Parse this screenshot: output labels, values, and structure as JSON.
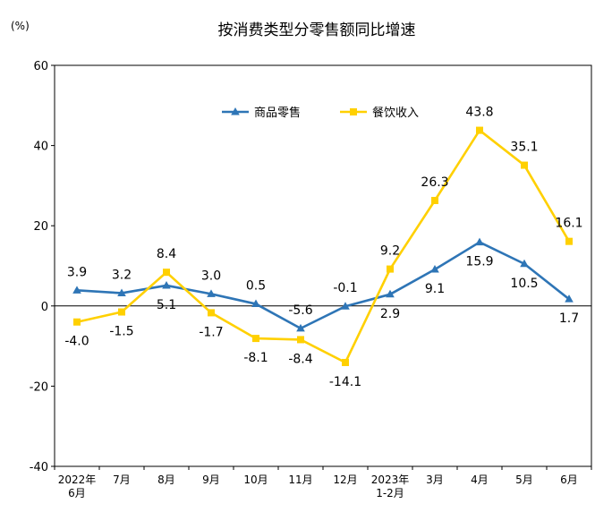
{
  "chart_data": {
    "type": "line",
    "title": "按消费类型分零售额同比增速",
    "unit": "(%)",
    "xlabel": "",
    "ylabel": "%",
    "ylim": [
      -40,
      60
    ],
    "yticks": [
      "60",
      "40",
      "20",
      "0",
      "-20",
      "-40"
    ],
    "grid": false,
    "legend_position": "top-center",
    "categories": [
      [
        "2022年",
        "6月"
      ],
      [
        "7月"
      ],
      [
        "8月"
      ],
      [
        "9月"
      ],
      [
        "10月"
      ],
      [
        "11月"
      ],
      [
        "12月"
      ],
      [
        "2023年",
        "1-2月"
      ],
      [
        "3月"
      ],
      [
        "4月"
      ],
      [
        "5月"
      ],
      [
        "6月"
      ]
    ],
    "series": [
      {
        "name": "商品零售",
        "color": "#2E75B6",
        "marker": "triangle",
        "values": [
          3.9,
          3.2,
          5.1,
          3.0,
          0.5,
          -5.6,
          -0.1,
          2.9,
          9.1,
          15.9,
          10.5,
          1.7
        ],
        "labels": [
          "3.9",
          "3.2",
          "5.1",
          "3.0",
          "0.5",
          "-5.6",
          "-0.1",
          "2.9",
          "9.1",
          "15.9",
          "10.5",
          "1.7"
        ]
      },
      {
        "name": "餐饮收入",
        "color": "#FFD000",
        "marker": "square",
        "values": [
          -4.0,
          -1.5,
          8.4,
          -1.7,
          -8.1,
          -8.4,
          -14.1,
          9.2,
          26.3,
          43.8,
          35.1,
          16.1
        ],
        "labels": [
          "-4.0",
          "-1.5",
          "8.4",
          "-1.7",
          "-8.1",
          "-8.4",
          "-14.1",
          "9.2",
          "26.3",
          "43.8",
          "35.1",
          "16.1"
        ]
      }
    ]
  }
}
